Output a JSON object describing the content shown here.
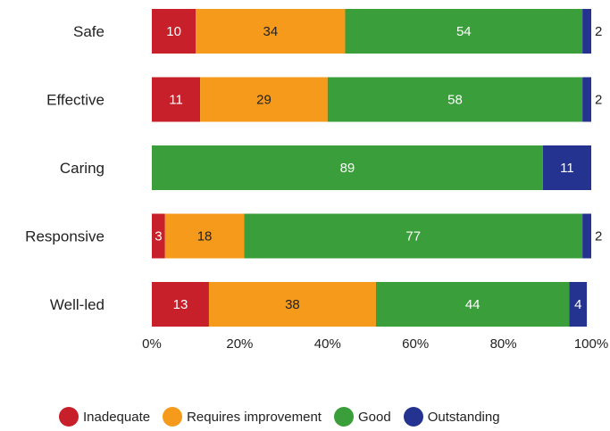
{
  "chart_data": {
    "type": "bar",
    "orientation": "horizontal",
    "stacked": true,
    "categories": [
      "Safe",
      "Effective",
      "Caring",
      "Responsive",
      "Well-led"
    ],
    "series": [
      {
        "name": "Inadequate",
        "color": "#c8202a",
        "values": [
          10,
          11,
          0,
          3,
          13
        ]
      },
      {
        "name": "Requires improvement",
        "color": "#f59a1b",
        "values": [
          34,
          29,
          0,
          18,
          38
        ]
      },
      {
        "name": "Good",
        "color": "#3a9f3a",
        "values": [
          54,
          58,
          89,
          77,
          44
        ]
      },
      {
        "name": "Outstanding",
        "color": "#24338f",
        "values": [
          2,
          2,
          11,
          2,
          4
        ]
      }
    ],
    "xlim": [
      0,
      100
    ],
    "xticks": [
      0,
      20,
      40,
      60,
      80,
      100
    ],
    "xtick_labels": [
      "0%",
      "20%",
      "40%",
      "60%",
      "80%",
      "100%"
    ],
    "grid": false,
    "legend_position": "bottom"
  }
}
